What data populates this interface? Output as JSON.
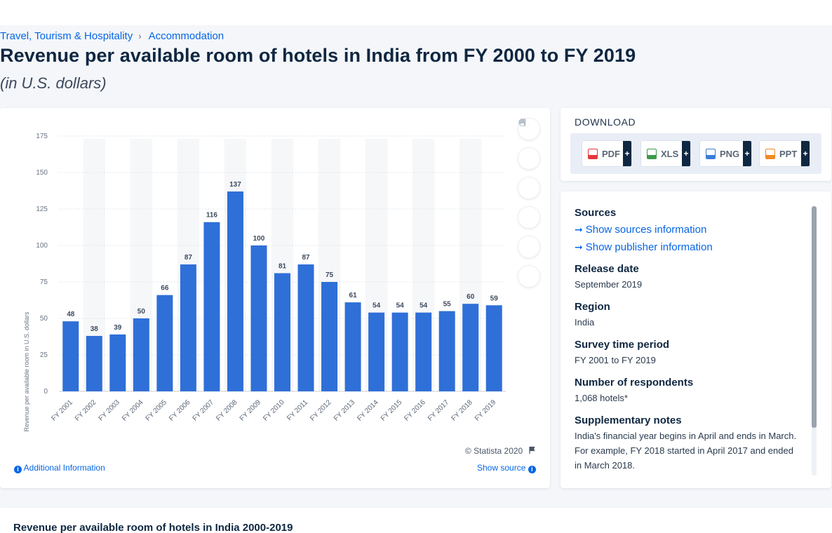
{
  "breadcrumb": {
    "items": [
      "Travel, Tourism & Hospitality",
      "Accommodation"
    ],
    "separator": "›"
  },
  "page": {
    "title": "Revenue per available room of hotels in India from FY 2000 to FY 2019",
    "subtitle": "(in U.S. dollars)"
  },
  "chart_meta": {
    "copyright": "© Statista 2020"
  },
  "chart_footer": {
    "additional_info": "Additional Information",
    "show_source": "Show source"
  },
  "chart_tools": [
    "star-icon",
    "bell-icon",
    "gear-icon",
    "share-icon",
    "quote-icon",
    "print-icon"
  ],
  "download": {
    "title": "DOWNLOAD",
    "buttons": [
      {
        "label": "PDF",
        "plus": "+",
        "color": "#e5383b"
      },
      {
        "label": "XLS",
        "plus": "+",
        "color": "#3c9a4b"
      },
      {
        "label": "PNG",
        "plus": "+",
        "color": "#3b7dd8"
      },
      {
        "label": "PPT",
        "plus": "+",
        "color": "#f08a24"
      }
    ]
  },
  "info": {
    "sources_heading": "Sources",
    "show_sources": "Show sources information",
    "show_publisher": "Show publisher information",
    "release_heading": "Release date",
    "release_value": "September 2019",
    "region_heading": "Region",
    "region_value": "India",
    "period_heading": "Survey time period",
    "period_value": "FY 2001 to FY 2019",
    "respondents_heading": "Number of respondents",
    "respondents_value": "1,068 hotels*",
    "notes_heading": "Supplementary notes",
    "notes_value": "India's financial year begins in April and ends in March. For example, FY 2018 started in April 2017 and ended in March 2018."
  },
  "bottom": {
    "title": "Revenue per available room of hotels in India 2000-2019"
  },
  "chart_data": {
    "type": "bar",
    "title": "",
    "xlabel": "",
    "ylabel": "Revenue per available room in U.S. dollars",
    "categories": [
      "FY 2001",
      "FY 2002",
      "FY 2003",
      "FY 2004",
      "FY 2005",
      "FY 2006",
      "FY 2007",
      "FY 2008",
      "FY 2009",
      "FY 2010",
      "FY 2011",
      "FY 2012",
      "FY 2013",
      "FY 2014",
      "FY 2015",
      "FY 2016",
      "FY 2017",
      "FY 2018",
      "FY 2019"
    ],
    "values": [
      48,
      38,
      39,
      50,
      66,
      87,
      116,
      137,
      100,
      81,
      87,
      75,
      61,
      54,
      54,
      54,
      55,
      60,
      59
    ],
    "ylim": [
      0,
      175
    ],
    "yticks": [
      0,
      25,
      50,
      75,
      100,
      125,
      150,
      175
    ],
    "bar_color": "#2f6fd8",
    "grid": true,
    "data_labels": true
  }
}
